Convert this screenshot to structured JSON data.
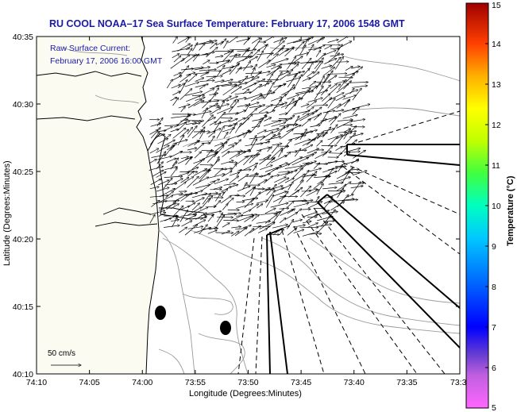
{
  "title": "RU COOL  NOAA–17  Sea Surface Temperature:  February 17, 2006 1548 GMT",
  "annotation": {
    "line1": "Raw Surface Current:",
    "line2": "February 17, 2006 16:00 GMT"
  },
  "x_axis": {
    "label": "Longitude (Degrees:Minutes)",
    "ticks": [
      "74:10",
      "74:05",
      "74:00",
      "73:55",
      "73:50",
      "73:45",
      "73:40",
      "73:35",
      "73:3"
    ]
  },
  "y_axis": {
    "label": "Latitude (Degrees:Minutes)",
    "ticks": [
      "40:35",
      "40:30",
      "40:25",
      "40:20",
      "40:15",
      "40:10"
    ]
  },
  "scale_arrow": {
    "label": "50 cm/s"
  },
  "colorbar": {
    "label": "Temperature (°C)",
    "ticks": [
      "15",
      "14",
      "13",
      "12",
      "11",
      "10",
      "9",
      "8",
      "7",
      "6",
      "5"
    ],
    "min": 5,
    "max": 15,
    "colors": [
      "#ff66ff",
      "#6a3fd0",
      "#0000ff",
      "#00a0ff",
      "#00ffff",
      "#00ff80",
      "#a0ff00",
      "#ffff00",
      "#ffa000",
      "#ff3000",
      "#a00000"
    ]
  },
  "colors": {
    "title": "#1a1aa8",
    "land": "#fbfbf2",
    "coast": "#000000",
    "bathymetry": "#9a9a9a"
  }
}
